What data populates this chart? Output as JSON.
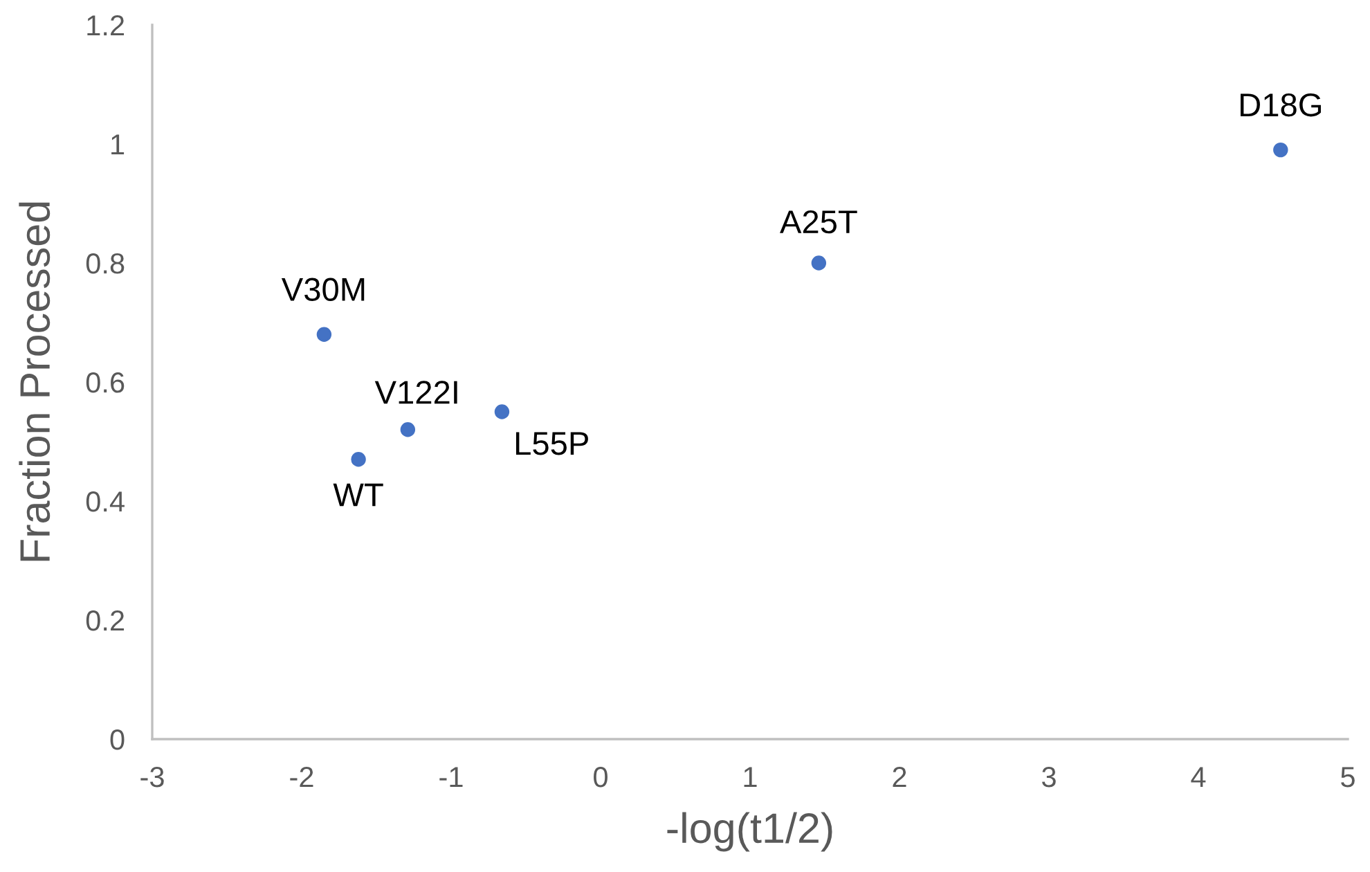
{
  "chart_data": {
    "type": "scatter",
    "xlabel": "-log(t1/2)",
    "ylabel": "Fraction Processed",
    "x": [
      -1.85,
      -1.29,
      -1.62,
      -0.66,
      1.46,
      4.55
    ],
    "series": [
      {
        "color": "#4472c4",
        "values": [
          0.68,
          0.52,
          0.47,
          0.55,
          0.8,
          0.99
        ]
      }
    ],
    "xlim": [
      -3,
      5
    ],
    "xticks": [
      -3,
      -2,
      -1,
      0,
      1,
      2,
      3,
      4,
      5
    ],
    "ylim": [
      0,
      1.2
    ],
    "yticks": [
      0,
      0.2,
      0.4,
      0.6,
      0.8,
      1,
      1.2
    ],
    "grid": false,
    "legend": false,
    "marker": "circle",
    "annotations": [
      {
        "text": "V30M",
        "x": -1.85,
        "y": 0.68
      },
      {
        "text": "V122I",
        "x": -1.29,
        "y": 0.52
      },
      {
        "text": "WT",
        "x": -1.62,
        "y": 0.47
      },
      {
        "text": "L55P",
        "x": -0.66,
        "y": 0.55
      },
      {
        "text": "A25T",
        "x": 1.46,
        "y": 0.8
      },
      {
        "text": "D18G",
        "x": 4.55,
        "y": 0.99
      }
    ]
  }
}
